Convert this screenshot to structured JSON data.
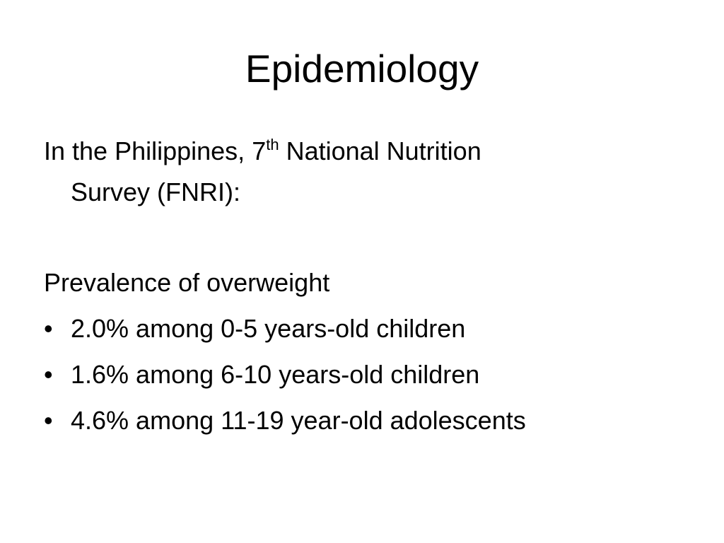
{
  "title": "Epidemiology",
  "intro": {
    "line1_before": "In the Philippines, 7",
    "sup": "th",
    "line1_after": " National Nutrition",
    "line2": "Survey (FNRI):"
  },
  "heading": "Prevalence of overweight",
  "bullets": [
    "2.0% among 0-5 years-old children",
    "1.6% among 6-10 years-old children",
    "4.6% among 11-19 year-old adolescents"
  ]
}
